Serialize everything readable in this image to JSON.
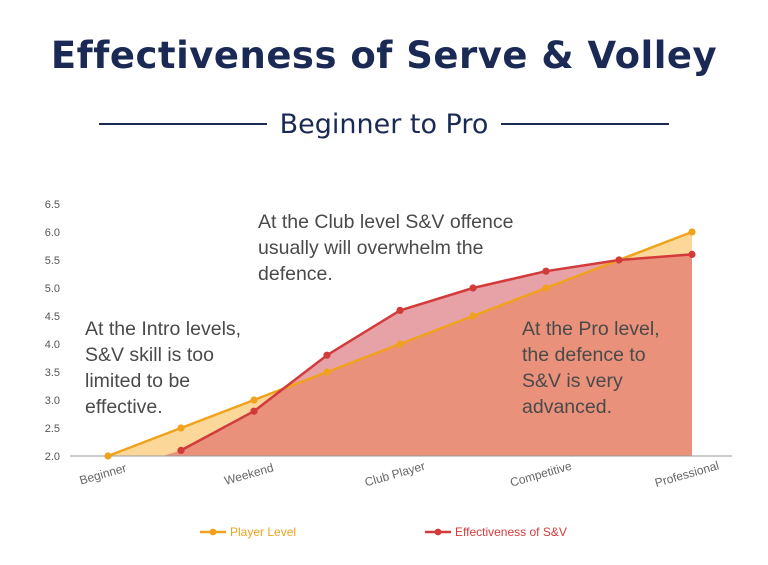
{
  "title": "Effectiveness of Serve & Volley",
  "subtitle": "Beginner to Pro",
  "chart_data": {
    "type": "area",
    "categories": [
      "Beginner",
      "Weekend",
      "Club Player",
      "Competitive",
      "Professional"
    ],
    "x": [
      0,
      0.5,
      1,
      1.5,
      2,
      2.5,
      3,
      3.5,
      4
    ],
    "series": [
      {
        "name": "Player Level",
        "color": "#f0a21c",
        "fill": "#fbd89a",
        "values": [
          2.0,
          2.5,
          3.0,
          3.5,
          4.0,
          4.5,
          5.0,
          5.5,
          6.0
        ]
      },
      {
        "name": "Effectiveness of S&V",
        "color": "#d33a3a",
        "fill": "#e88d78",
        "values": [
          null,
          2.1,
          2.8,
          3.8,
          4.6,
          5.0,
          5.3,
          5.5,
          5.6
        ]
      }
    ],
    "ylim": [
      2.0,
      6.5
    ],
    "yticks": [
      "2.0",
      "2.5",
      "3.0",
      "3.5",
      "4.0",
      "4.5",
      "5.0",
      "5.5",
      "6.0",
      "6.5"
    ],
    "grid": false,
    "legend_position": "bottom"
  },
  "annotations": {
    "intro": [
      "At the Intro levels,",
      "S&V skill is too",
      "limited to be",
      "effective."
    ],
    "club": [
      "At the Club level S&V offence",
      "usually will overwhelm the",
      "defence."
    ],
    "pro": [
      "At the Pro level,",
      "the defence to",
      "S&V is very",
      "advanced."
    ]
  }
}
